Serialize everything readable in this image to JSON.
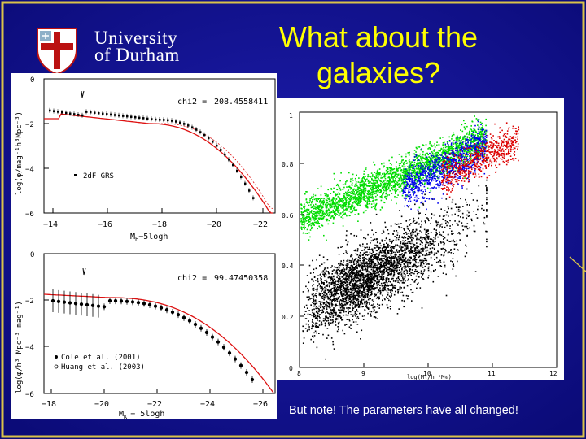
{
  "slide": {
    "title_line1": "What about the",
    "title_line2": "galaxies?",
    "caption": "But note! The parameters have all changed!",
    "colors": {
      "background_center": "#1a1aa6",
      "background_edge": "#0a0a6e",
      "border": "#d9c24a",
      "title": "#ffff00",
      "text": "#ffffff"
    }
  },
  "logo": {
    "line1": "University",
    "line2": "of Durham",
    "icon": "durham-crest-icon"
  },
  "panel_top": {
    "stat_label": "chi2 =",
    "stat_value": "208.4558411",
    "legend": "2dF GRS",
    "ylabel": "log(φ/mag⁻¹h³Mpc⁻³)",
    "xlabel": "M",
    "xlabel_sub": "b",
    "xlabel_rest": "−5logh",
    "yticks": [
      "0",
      "−2",
      "−4",
      "−6"
    ],
    "xticks": [
      "−14",
      "−16",
      "−18",
      "−20",
      "−22"
    ]
  },
  "panel_bottom": {
    "stat_label": "chi2 =",
    "stat_value": "99.47450358",
    "legend1": "Cole et al. (2001)",
    "legend2": "Huang et al. (2003)",
    "ylabel": "log(φ/h³ Mpc⁻³ mag⁻¹)",
    "xlabel": "M",
    "xlabel_sub": "K",
    "xlabel_rest": "− 5logh",
    "yticks": [
      "0",
      "−2",
      "−4",
      "−6"
    ],
    "xticks": [
      "−18",
      "−20",
      "−22",
      "−24",
      "−26"
    ]
  },
  "panel_scatter": {
    "xlabel": "log(Mₗ/h⁻¹M⊙)",
    "yticks": [
      "1",
      "0.8",
      "0.6",
      "0.4",
      "0.2",
      "0"
    ],
    "xticks": [
      "8",
      "9",
      "10",
      "11",
      "12"
    ],
    "series_colors": [
      "#00dd00",
      "#0000ee",
      "#dd0000",
      "#000000"
    ]
  }
}
